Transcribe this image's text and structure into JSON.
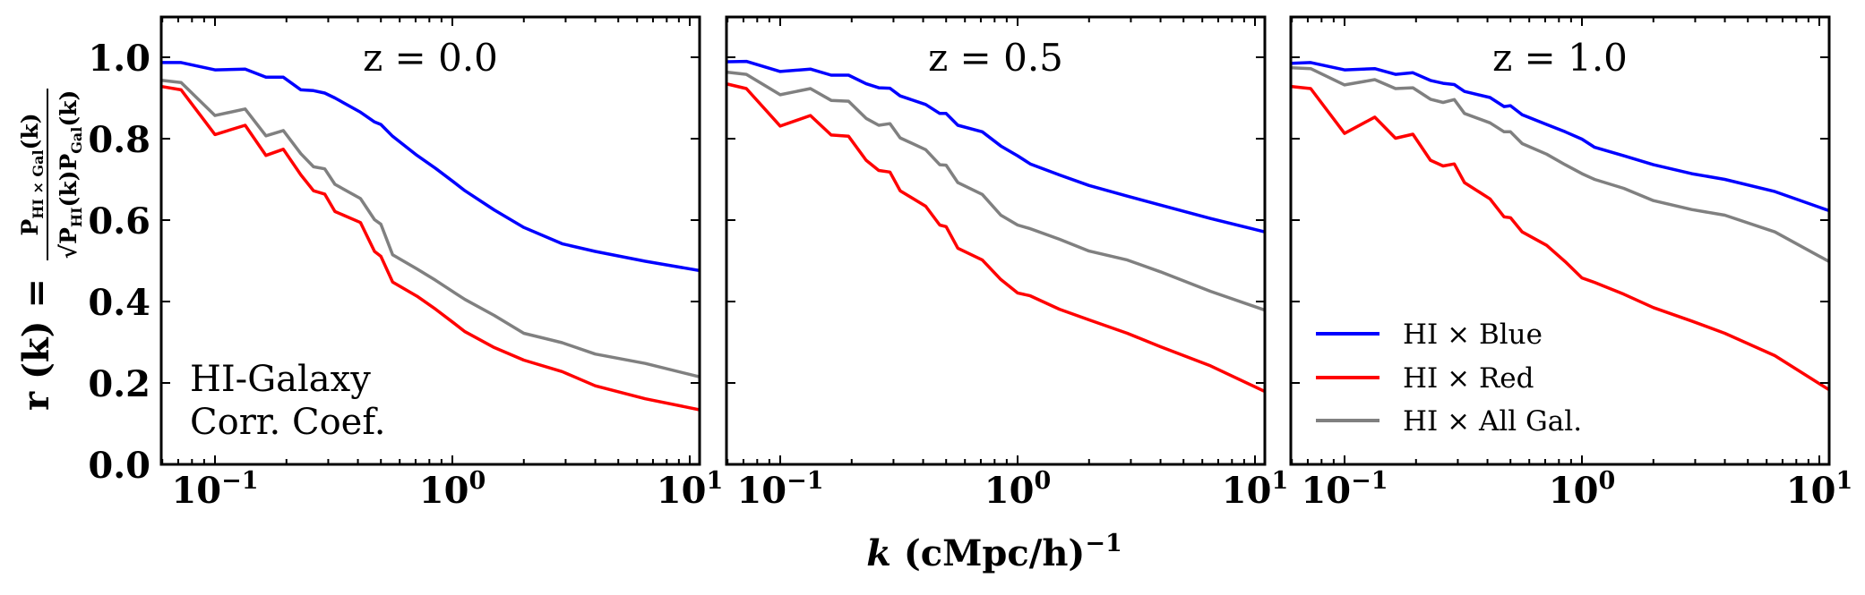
{
  "figure": {
    "xlabel": {
      "main": "k (cMpc/h)",
      "k": "k",
      "rest": " (cMpc/h)",
      "sup": "−1"
    },
    "ylabel": {
      "lhs": "r (k) =",
      "numerator": "P",
      "numerator_sub": "HI × Gal",
      "numerator_tail": "(k)",
      "denominator": "√P",
      "denominator_sub1": "HI",
      "denominator_mid": "(k)P",
      "denominator_sub2": "Gal",
      "denominator_tail": "(k)"
    },
    "annotation": [
      "HI-Galaxy",
      "Corr. Coef."
    ],
    "legend": [
      {
        "label": "HI × Blue",
        "color": "#0000ff"
      },
      {
        "label": "HI × Red",
        "color": "#ff0000"
      },
      {
        "label": "HI × All Gal.",
        "color": "#808080"
      }
    ],
    "y_tick_labels": [
      "0.0",
      "0.2",
      "0.4",
      "0.6",
      "0.8",
      "1.0"
    ],
    "x_tick_labels": [
      {
        "base": "10",
        "exp": "−1"
      },
      {
        "base": "10",
        "exp": "0"
      },
      {
        "base": "10",
        "exp": "1"
      }
    ]
  },
  "chart_data": [
    {
      "type": "line",
      "title": "z = 0.0",
      "xlabel": "k (cMpc/h)^-1",
      "ylabel": "r(k) = P_HIxGal(k) / sqrt(P_HI(k) P_Gal(k))",
      "xscale": "log",
      "xlim": [
        0.059,
        11.0
      ],
      "ylim": [
        0.0,
        1.1
      ],
      "grid": false,
      "legend_position": "none",
      "annotation": "HI-Galaxy Corr. Coef.",
      "x": [
        0.06,
        0.072,
        0.1,
        0.134,
        0.164,
        0.194,
        0.23,
        0.26,
        0.29,
        0.32,
        0.41,
        0.47,
        0.5,
        0.56,
        0.71,
        0.85,
        1.0,
        1.13,
        1.5,
        2.0,
        2.9,
        4.0,
        6.5,
        11.0
      ],
      "series": [
        {
          "name": "HI × Blue",
          "color": "#0000ff",
          "values": [
            0.987,
            0.987,
            0.969,
            0.971,
            0.951,
            0.951,
            0.92,
            0.918,
            0.912,
            0.9,
            0.865,
            0.841,
            0.835,
            0.806,
            0.759,
            0.727,
            0.696,
            0.672,
            0.625,
            0.582,
            0.542,
            0.523,
            0.499,
            0.476
          ]
        },
        {
          "name": "HI × Red",
          "color": "#ff0000",
          "values": [
            0.928,
            0.92,
            0.81,
            0.833,
            0.759,
            0.774,
            0.711,
            0.672,
            0.664,
            0.621,
            0.594,
            0.523,
            0.511,
            0.448,
            0.413,
            0.381,
            0.35,
            0.326,
            0.287,
            0.256,
            0.228,
            0.193,
            0.161,
            0.134
          ]
        },
        {
          "name": "HI × All Gal.",
          "color": "#808080",
          "values": [
            0.943,
            0.938,
            0.857,
            0.873,
            0.807,
            0.82,
            0.763,
            0.731,
            0.726,
            0.688,
            0.653,
            0.601,
            0.59,
            0.515,
            0.48,
            0.452,
            0.425,
            0.405,
            0.366,
            0.322,
            0.299,
            0.271,
            0.248,
            0.215
          ]
        }
      ]
    },
    {
      "type": "line",
      "title": "z = 0.5",
      "xlabel": "k (cMpc/h)^-1",
      "xscale": "log",
      "xlim": [
        0.059,
        11.0
      ],
      "ylim": [
        0.0,
        1.1
      ],
      "grid": false,
      "legend_position": "none",
      "x": [
        0.06,
        0.072,
        0.1,
        0.134,
        0.164,
        0.194,
        0.23,
        0.26,
        0.29,
        0.32,
        0.41,
        0.47,
        0.5,
        0.56,
        0.71,
        0.85,
        1.0,
        1.13,
        1.5,
        2.0,
        2.9,
        4.0,
        6.5,
        11.0
      ],
      "series": [
        {
          "name": "HI × Blue",
          "color": "#0000ff",
          "values": [
            0.989,
            0.99,
            0.965,
            0.971,
            0.956,
            0.956,
            0.935,
            0.925,
            0.924,
            0.905,
            0.884,
            0.862,
            0.862,
            0.833,
            0.817,
            0.782,
            0.758,
            0.738,
            0.711,
            0.685,
            0.659,
            0.637,
            0.604,
            0.571
          ]
        },
        {
          "name": "HI × Red",
          "color": "#ff0000",
          "values": [
            0.934,
            0.923,
            0.831,
            0.857,
            0.809,
            0.806,
            0.747,
            0.722,
            0.718,
            0.672,
            0.634,
            0.588,
            0.584,
            0.531,
            0.502,
            0.454,
            0.421,
            0.414,
            0.381,
            0.355,
            0.322,
            0.289,
            0.242,
            0.179
          ]
        },
        {
          "name": "HI × All Gal.",
          "color": "#808080",
          "values": [
            0.963,
            0.958,
            0.908,
            0.923,
            0.894,
            0.892,
            0.85,
            0.833,
            0.837,
            0.802,
            0.773,
            0.736,
            0.735,
            0.692,
            0.663,
            0.612,
            0.588,
            0.579,
            0.553,
            0.524,
            0.502,
            0.473,
            0.425,
            0.379
          ]
        }
      ]
    },
    {
      "type": "line",
      "title": "z = 1.0",
      "xlabel": "k (cMpc/h)^-1",
      "xscale": "log",
      "xlim": [
        0.059,
        11.0
      ],
      "ylim": [
        0.0,
        1.1
      ],
      "grid": false,
      "legend_position": "lower left",
      "legend": [
        "HI × Blue",
        "HI × Red",
        "HI × All Gal."
      ],
      "x": [
        0.06,
        0.072,
        0.1,
        0.134,
        0.164,
        0.194,
        0.23,
        0.26,
        0.29,
        0.32,
        0.41,
        0.47,
        0.5,
        0.56,
        0.71,
        0.85,
        1.0,
        1.13,
        1.5,
        2.0,
        2.9,
        4.0,
        6.5,
        11.0
      ],
      "series": [
        {
          "name": "HI × Blue",
          "color": "#0000ff",
          "values": [
            0.985,
            0.987,
            0.969,
            0.972,
            0.958,
            0.962,
            0.943,
            0.936,
            0.933,
            0.916,
            0.901,
            0.879,
            0.881,
            0.859,
            0.835,
            0.817,
            0.799,
            0.779,
            0.758,
            0.736,
            0.714,
            0.7,
            0.67,
            0.623
          ]
        },
        {
          "name": "HI × Red",
          "color": "#ff0000",
          "values": [
            0.928,
            0.923,
            0.813,
            0.853,
            0.801,
            0.811,
            0.747,
            0.733,
            0.738,
            0.692,
            0.652,
            0.608,
            0.606,
            0.571,
            0.538,
            0.498,
            0.458,
            0.447,
            0.418,
            0.385,
            0.352,
            0.322,
            0.267,
            0.183
          ]
        },
        {
          "name": "HI × All Gal.",
          "color": "#808080",
          "values": [
            0.974,
            0.972,
            0.932,
            0.945,
            0.923,
            0.925,
            0.897,
            0.889,
            0.896,
            0.862,
            0.839,
            0.817,
            0.817,
            0.788,
            0.762,
            0.736,
            0.714,
            0.7,
            0.678,
            0.648,
            0.626,
            0.612,
            0.571,
            0.498
          ]
        }
      ]
    }
  ]
}
